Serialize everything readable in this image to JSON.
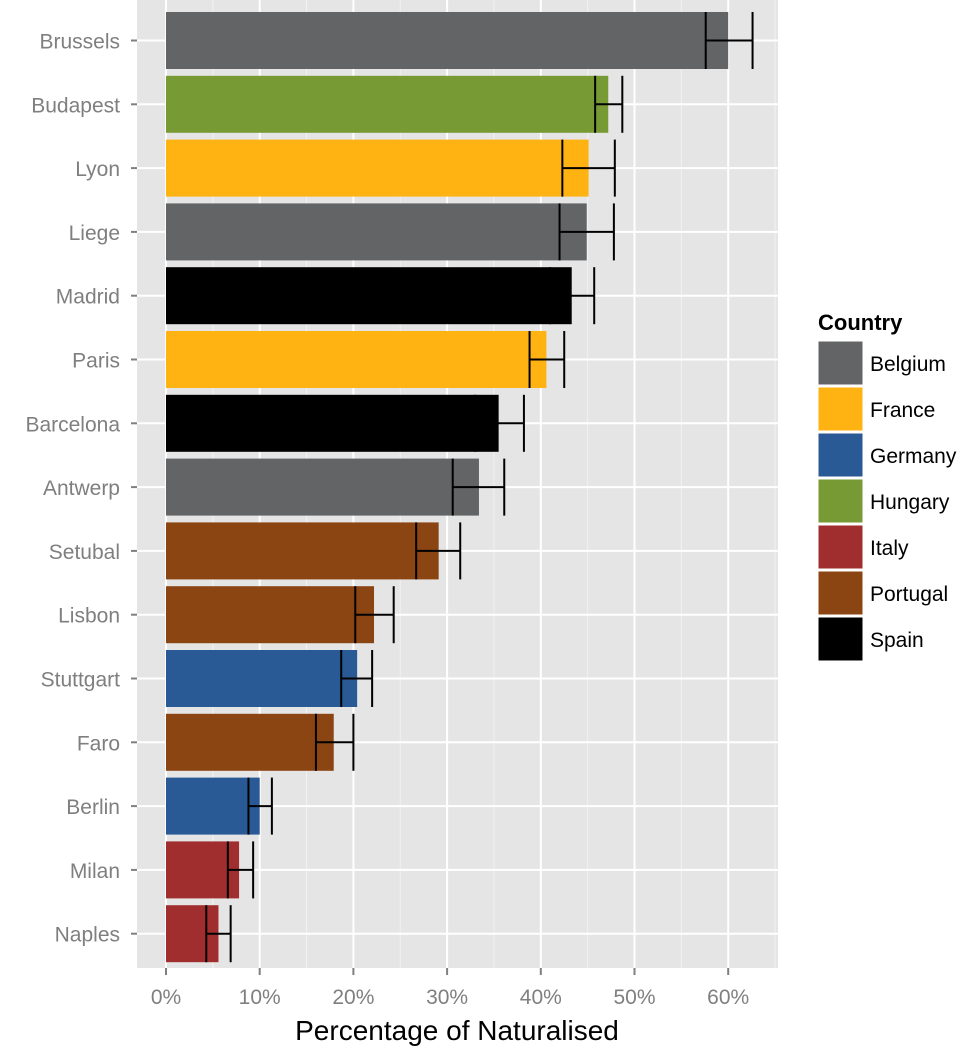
{
  "chart_data": {
    "type": "bar",
    "orientation": "horizontal",
    "xlabel": "Percentage of Naturalised",
    "ylabel": "",
    "xlim": [
      -3,
      65
    ],
    "x_ticks": [
      0,
      10,
      20,
      30,
      40,
      50,
      60
    ],
    "x_tick_labels": [
      "0%",
      "10%",
      "20%",
      "30%",
      "40%",
      "50%",
      "60%"
    ],
    "grid": true,
    "legend": {
      "title": "Country",
      "position": "right",
      "entries": [
        {
          "label": "Belgium",
          "color": "#636466"
        },
        {
          "label": "France",
          "color": "#FFB313"
        },
        {
          "label": "Germany",
          "color": "#2A5A96"
        },
        {
          "label": "Hungary",
          "color": "#779A35"
        },
        {
          "label": "Italy",
          "color": "#A12E2E"
        },
        {
          "label": "Portugal",
          "color": "#8B4512"
        },
        {
          "label": "Spain",
          "color": "#000000"
        }
      ]
    },
    "bars": [
      {
        "city": "Brussels",
        "country": "Belgium",
        "value": 60.0,
        "err_low": 57.6,
        "err_high": 62.6
      },
      {
        "city": "Budapest",
        "country": "Hungary",
        "value": 47.2,
        "err_low": 45.8,
        "err_high": 48.7
      },
      {
        "city": "Lyon",
        "country": "France",
        "value": 45.1,
        "err_low": 42.3,
        "err_high": 47.9
      },
      {
        "city": "Liege",
        "country": "Belgium",
        "value": 44.9,
        "err_low": 42.0,
        "err_high": 47.8
      },
      {
        "city": "Madrid",
        "country": "Spain",
        "value": 43.3,
        "err_low": 41.0,
        "err_high": 45.7
      },
      {
        "city": "Paris",
        "country": "France",
        "value": 40.6,
        "err_low": 38.8,
        "err_high": 42.5
      },
      {
        "city": "Barcelona",
        "country": "Spain",
        "value": 35.5,
        "err_low": 33.0,
        "err_high": 38.2
      },
      {
        "city": "Antwerp",
        "country": "Belgium",
        "value": 33.4,
        "err_low": 30.6,
        "err_high": 36.1
      },
      {
        "city": "Setubal",
        "country": "Portugal",
        "value": 29.1,
        "err_low": 26.7,
        "err_high": 31.4
      },
      {
        "city": "Lisbon",
        "country": "Portugal",
        "value": 22.2,
        "err_low": 20.2,
        "err_high": 24.3
      },
      {
        "city": "Stuttgart",
        "country": "Germany",
        "value": 20.4,
        "err_low": 18.7,
        "err_high": 22.0
      },
      {
        "city": "Faro",
        "country": "Portugal",
        "value": 17.9,
        "err_low": 16.0,
        "err_high": 20.0
      },
      {
        "city": "Berlin",
        "country": "Germany",
        "value": 10.0,
        "err_low": 8.8,
        "err_high": 11.3
      },
      {
        "city": "Milan",
        "country": "Italy",
        "value": 7.8,
        "err_low": 6.6,
        "err_high": 9.3
      },
      {
        "city": "Naples",
        "country": "Italy",
        "value": 5.6,
        "err_low": 4.3,
        "err_high": 6.9
      }
    ]
  }
}
